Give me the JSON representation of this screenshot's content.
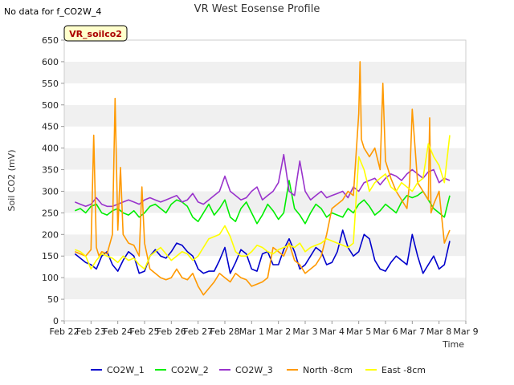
{
  "corner_note": "No data for f_CO2W_4",
  "badge": {
    "label": "VR_soilco2",
    "fill": "#ffffcc",
    "stroke": "#000000",
    "text_color": "#aa0000"
  },
  "chart_data": {
    "type": "line",
    "title": "VR West Eosense Profile",
    "xlabel": "Time",
    "ylabel": "Soil CO2 (mV)",
    "ylim": [
      0,
      650
    ],
    "yticks": [
      0,
      50,
      100,
      150,
      200,
      250,
      300,
      350,
      400,
      450,
      500,
      550,
      600,
      650
    ],
    "xlim": [
      0,
      15
    ],
    "xticks": [
      0,
      1,
      2,
      3,
      4,
      5,
      6,
      7,
      8,
      9,
      10,
      11,
      12,
      13,
      14,
      15
    ],
    "xtick_labels": [
      "Feb 22",
      "Feb 23",
      "Feb 24",
      "Feb 25",
      "Feb 26",
      "Feb 27",
      "Feb 28",
      "Mar 1",
      "Mar 2",
      "Mar 3",
      "Mar 4",
      "Mar 5",
      "Mar 6",
      "Mar 7",
      "Mar 8",
      "Mar 9"
    ],
    "x_unit": "days since Feb 22",
    "grid": "horizontal bands",
    "band_colors": [
      "#ffffff",
      "#f0f0f0"
    ],
    "legend_position": "bottom",
    "series": [
      {
        "name": "CO2W_1",
        "color": "#0000cc",
        "x": [
          0.4,
          0.6,
          0.8,
          1.0,
          1.2,
          1.4,
          1.6,
          1.8,
          2.0,
          2.2,
          2.4,
          2.6,
          2.8,
          3.0,
          3.2,
          3.4,
          3.6,
          3.8,
          4.0,
          4.2,
          4.4,
          4.6,
          4.8,
          5.0,
          5.2,
          5.4,
          5.6,
          5.8,
          6.0,
          6.2,
          6.4,
          6.6,
          6.8,
          7.0,
          7.2,
          7.4,
          7.6,
          7.8,
          8.0,
          8.2,
          8.4,
          8.6,
          8.8,
          9.0,
          9.2,
          9.4,
          9.6,
          9.8,
          10.0,
          10.2,
          10.4,
          10.6,
          10.8,
          11.0,
          11.2,
          11.4,
          11.6,
          11.8,
          12.0,
          12.2,
          12.4,
          12.6,
          12.8,
          13.0,
          13.2,
          13.4,
          13.6,
          13.8,
          14.0,
          14.2,
          14.4
        ],
        "y": [
          155,
          145,
          135,
          130,
          120,
          150,
          160,
          130,
          115,
          140,
          160,
          150,
          110,
          115,
          150,
          165,
          150,
          145,
          160,
          180,
          175,
          160,
          150,
          120,
          110,
          115,
          115,
          140,
          170,
          110,
          135,
          165,
          155,
          120,
          115,
          155,
          160,
          130,
          130,
          165,
          190,
          160,
          120,
          130,
          150,
          170,
          160,
          130,
          135,
          160,
          210,
          170,
          150,
          160,
          200,
          190,
          140,
          120,
          115,
          135,
          150,
          140,
          130,
          200,
          150,
          110,
          130,
          150,
          120,
          130,
          185
        ]
      },
      {
        "name": "CO2W_2",
        "color": "#00ee00",
        "x": [
          0.4,
          0.6,
          0.8,
          1.0,
          1.2,
          1.4,
          1.6,
          1.8,
          2.0,
          2.2,
          2.4,
          2.6,
          2.8,
          3.0,
          3.2,
          3.4,
          3.6,
          3.8,
          4.0,
          4.2,
          4.4,
          4.6,
          4.8,
          5.0,
          5.2,
          5.4,
          5.6,
          5.8,
          6.0,
          6.2,
          6.4,
          6.6,
          6.8,
          7.0,
          7.2,
          7.4,
          7.6,
          7.8,
          8.0,
          8.2,
          8.4,
          8.6,
          8.8,
          9.0,
          9.2,
          9.4,
          9.6,
          9.8,
          10.0,
          10.2,
          10.4,
          10.6,
          10.8,
          11.0,
          11.2,
          11.4,
          11.6,
          11.8,
          12.0,
          12.2,
          12.4,
          12.6,
          12.8,
          13.0,
          13.2,
          13.4,
          13.6,
          13.8,
          14.0,
          14.2,
          14.4
        ],
        "y": [
          255,
          260,
          250,
          265,
          270,
          250,
          245,
          255,
          260,
          250,
          245,
          255,
          240,
          250,
          265,
          270,
          260,
          250,
          270,
          280,
          275,
          265,
          240,
          230,
          250,
          270,
          245,
          260,
          280,
          240,
          230,
          260,
          275,
          250,
          225,
          245,
          270,
          255,
          235,
          250,
          325,
          260,
          245,
          225,
          250,
          270,
          260,
          240,
          250,
          245,
          240,
          260,
          250,
          270,
          280,
          265,
          245,
          255,
          270,
          260,
          250,
          275,
          290,
          285,
          290,
          300,
          280,
          260,
          250,
          240,
          290
        ]
      },
      {
        "name": "CO2W_3",
        "color": "#9933cc",
        "x": [
          0.4,
          0.6,
          0.8,
          1.0,
          1.2,
          1.4,
          1.6,
          1.8,
          2.0,
          2.2,
          2.4,
          2.6,
          2.8,
          3.0,
          3.2,
          3.4,
          3.6,
          3.8,
          4.0,
          4.2,
          4.4,
          4.6,
          4.8,
          5.0,
          5.2,
          5.4,
          5.6,
          5.8,
          6.0,
          6.2,
          6.4,
          6.6,
          6.8,
          7.0,
          7.2,
          7.4,
          7.6,
          7.8,
          8.0,
          8.2,
          8.4,
          8.6,
          8.8,
          9.0,
          9.2,
          9.4,
          9.6,
          9.8,
          10.0,
          10.2,
          10.4,
          10.6,
          10.8,
          11.0,
          11.2,
          11.4,
          11.6,
          11.8,
          12.0,
          12.2,
          12.4,
          12.6,
          12.8,
          13.0,
          13.2,
          13.4,
          13.6,
          13.8,
          14.0,
          14.2,
          14.4
        ],
        "y": [
          275,
          270,
          265,
          270,
          285,
          270,
          265,
          265,
          270,
          275,
          280,
          275,
          270,
          280,
          285,
          280,
          275,
          280,
          285,
          290,
          275,
          280,
          295,
          275,
          270,
          280,
          290,
          300,
          335,
          300,
          290,
          280,
          285,
          300,
          310,
          280,
          290,
          300,
          320,
          385,
          300,
          290,
          370,
          300,
          280,
          290,
          300,
          285,
          290,
          295,
          300,
          285,
          310,
          300,
          320,
          325,
          330,
          315,
          330,
          340,
          335,
          325,
          340,
          350,
          340,
          330,
          345,
          350,
          320,
          330,
          325
        ]
      },
      {
        "name": "North -8cm",
        "color": "#ff9900",
        "x": [
          0.4,
          0.6,
          0.8,
          1.0,
          1.1,
          1.2,
          1.3,
          1.4,
          1.6,
          1.8,
          1.9,
          2.0,
          2.1,
          2.2,
          2.4,
          2.6,
          2.8,
          2.9,
          3.0,
          3.2,
          3.4,
          3.6,
          3.8,
          4.0,
          4.2,
          4.4,
          4.6,
          4.8,
          5.0,
          5.2,
          5.4,
          5.6,
          5.8,
          6.0,
          6.2,
          6.4,
          6.6,
          6.8,
          7.0,
          7.2,
          7.4,
          7.6,
          7.8,
          8.0,
          8.2,
          8.4,
          8.6,
          8.8,
          9.0,
          9.2,
          9.4,
          9.6,
          9.8,
          10.0,
          10.2,
          10.4,
          10.6,
          10.8,
          11.0,
          11.05,
          11.1,
          11.2,
          11.4,
          11.6,
          11.8,
          11.9,
          12.0,
          12.2,
          12.4,
          12.6,
          12.8,
          12.9,
          13.0,
          13.2,
          13.4,
          13.6,
          13.65,
          13.7,
          13.8,
          14.0,
          14.2,
          14.4
        ],
        "y": [
          160,
          155,
          150,
          165,
          430,
          170,
          150,
          160,
          155,
          200,
          515,
          210,
          355,
          200,
          180,
          175,
          150,
          310,
          180,
          120,
          110,
          100,
          95,
          100,
          120,
          100,
          95,
          110,
          80,
          60,
          75,
          90,
          110,
          100,
          90,
          110,
          100,
          95,
          80,
          85,
          90,
          100,
          170,
          160,
          150,
          180,
          140,
          130,
          110,
          120,
          130,
          150,
          200,
          260,
          270,
          280,
          300,
          290,
          480,
          600,
          420,
          400,
          380,
          400,
          350,
          550,
          370,
          330,
          300,
          280,
          260,
          320,
          490,
          320,
          300,
          280,
          470,
          250,
          270,
          300,
          180,
          210
        ]
      },
      {
        "name": "East -8cm",
        "color": "#ffff00",
        "x": [
          0.4,
          0.6,
          0.8,
          1.0,
          1.2,
          1.4,
          1.6,
          1.8,
          2.0,
          2.2,
          2.4,
          2.6,
          2.8,
          3.0,
          3.2,
          3.4,
          3.6,
          3.8,
          4.0,
          4.2,
          4.4,
          4.6,
          4.8,
          5.0,
          5.2,
          5.4,
          5.6,
          5.8,
          6.0,
          6.2,
          6.4,
          6.6,
          6.8,
          7.0,
          7.2,
          7.4,
          7.6,
          7.8,
          8.0,
          8.2,
          8.4,
          8.6,
          8.8,
          9.0,
          9.2,
          9.4,
          9.6,
          9.8,
          10.0,
          10.2,
          10.4,
          10.6,
          10.8,
          11.0,
          11.2,
          11.4,
          11.6,
          11.8,
          12.0,
          12.2,
          12.4,
          12.6,
          12.8,
          13.0,
          13.2,
          13.4,
          13.6,
          13.8,
          14.0,
          14.2,
          14.4
        ],
        "y": [
          165,
          160,
          150,
          120,
          140,
          155,
          150,
          145,
          135,
          150,
          140,
          145,
          130,
          120,
          150,
          160,
          170,
          155,
          140,
          150,
          160,
          155,
          140,
          150,
          170,
          190,
          195,
          200,
          220,
          195,
          160,
          150,
          150,
          160,
          175,
          170,
          160,
          155,
          165,
          170,
          175,
          170,
          180,
          160,
          170,
          175,
          180,
          190,
          185,
          180,
          175,
          170,
          180,
          380,
          350,
          300,
          320,
          330,
          340,
          310,
          300,
          320,
          310,
          300,
          320,
          330,
          410,
          380,
          360,
          320,
          430
        ]
      }
    ]
  }
}
